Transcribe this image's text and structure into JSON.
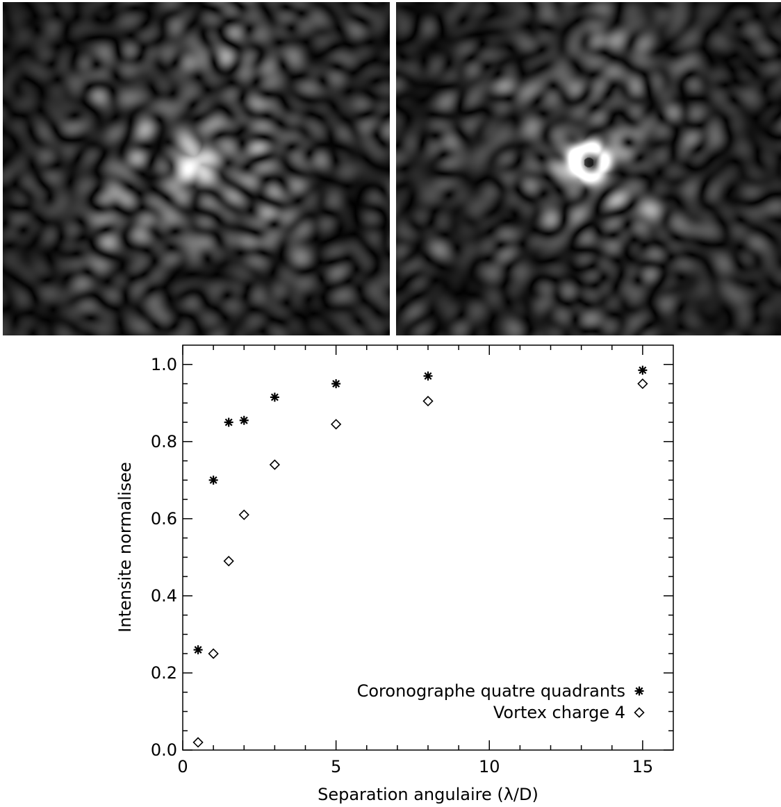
{
  "images": [
    {
      "name": "speckle-image-four-quadrant",
      "kind": "speckle-intensity-map",
      "colormap": "grayscale"
    },
    {
      "name": "speckle-image-vortex",
      "kind": "speckle-intensity-map",
      "colormap": "grayscale"
    }
  ],
  "chart_data": {
    "type": "scatter",
    "title": "",
    "xlabel": "Separation angulaire (λ/D)",
    "ylabel": "Intensite normalisee",
    "xlim": [
      0,
      16
    ],
    "ylim": [
      0,
      1.05
    ],
    "xticks": [
      0,
      5,
      10,
      15
    ],
    "xtick_labels": [
      "0",
      "5",
      "10",
      "15"
    ],
    "yticks": [
      0.0,
      0.2,
      0.4,
      0.6,
      0.8,
      1.0
    ],
    "ytick_labels": [
      "0.0",
      "0.2",
      "0.4",
      "0.6",
      "0.8",
      "1.0"
    ],
    "grid": false,
    "legend_position": "bottom-right",
    "series": [
      {
        "name": "Coronographe quatre quadrants",
        "marker": "asterisk",
        "x": [
          0.5,
          1,
          1.5,
          2,
          3,
          5,
          8,
          15
        ],
        "y": [
          0.26,
          0.7,
          0.85,
          0.855,
          0.915,
          0.95,
          0.97,
          0.985
        ]
      },
      {
        "name": "Vortex charge 4",
        "marker": "diamond",
        "x": [
          0.5,
          1,
          1.5,
          2,
          3,
          5,
          8,
          15
        ],
        "y": [
          0.02,
          0.25,
          0.49,
          0.61,
          0.74,
          0.845,
          0.905,
          0.95
        ]
      }
    ]
  }
}
